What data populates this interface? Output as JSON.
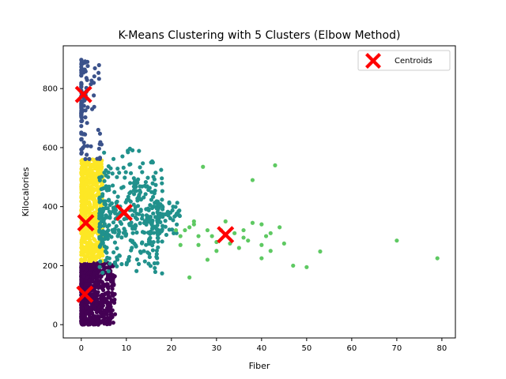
{
  "chart_data": {
    "type": "scatter",
    "title": "K-Means Clustering with 5 Clusters (Elbow Method)",
    "xlabel": "Fiber",
    "ylabel": "Kilocalories",
    "xlim": [
      -4,
      83
    ],
    "ylim": [
      -45,
      945
    ],
    "xticks": [
      0,
      10,
      20,
      30,
      40,
      50,
      60,
      70,
      80
    ],
    "yticks": [
      0,
      200,
      400,
      600,
      800
    ],
    "grid": false,
    "legend": {
      "placement": "top-right",
      "entries": [
        "Centroids"
      ]
    },
    "clusters": [
      {
        "color": "#440154",
        "x_range": [
          0,
          8
        ],
        "y_range": [
          0,
          210
        ]
      },
      {
        "color": "#3b528b",
        "x_range": [
          0,
          5
        ],
        "y_range": [
          560,
          900
        ]
      },
      {
        "color": "#21918c",
        "x_range": [
          3,
          22
        ],
        "y_range": [
          160,
          720
        ]
      },
      {
        "color": "#5ec962",
        "x_range": [
          20,
          80
        ],
        "y_range": [
          160,
          540
        ]
      },
      {
        "color": "#fde725",
        "x_range": [
          0,
          5
        ],
        "y_range": [
          215,
          560
        ]
      }
    ],
    "centroids": {
      "name": "Centroids",
      "color": "#ff0000",
      "points": [
        {
          "x": 0.5,
          "y": 780
        },
        {
          "x": 1,
          "y": 345
        },
        {
          "x": 0.8,
          "y": 103
        },
        {
          "x": 9.5,
          "y": 380
        },
        {
          "x": 32,
          "y": 305
        }
      ]
    },
    "green_outliers": [
      [
        79,
        225
      ],
      [
        70,
        285
      ],
      [
        53,
        248
      ],
      [
        50,
        195
      ],
      [
        47,
        200
      ],
      [
        45,
        275
      ],
      [
        43,
        540
      ],
      [
        42,
        310
      ],
      [
        42,
        250
      ],
      [
        41,
        300
      ],
      [
        40,
        340
      ],
      [
        40,
        270
      ],
      [
        40,
        225
      ],
      [
        38,
        490
      ],
      [
        37,
        285
      ],
      [
        36,
        320
      ],
      [
        35,
        260
      ],
      [
        33,
        275
      ],
      [
        32,
        350
      ],
      [
        30,
        280
      ],
      [
        30,
        250
      ],
      [
        28,
        320
      ],
      [
        27,
        535
      ],
      [
        26,
        300
      ],
      [
        25,
        350
      ],
      [
        24,
        330
      ],
      [
        24,
        160
      ],
      [
        23,
        320
      ],
      [
        22,
        300
      ],
      [
        21,
        320
      ],
      [
        22,
        270
      ],
      [
        28,
        220
      ],
      [
        34,
        310
      ],
      [
        36,
        295
      ],
      [
        38,
        345
      ],
      [
        25,
        340
      ],
      [
        26,
        270
      ],
      [
        29,
        300
      ],
      [
        31,
        320
      ],
      [
        44,
        330
      ]
    ]
  }
}
